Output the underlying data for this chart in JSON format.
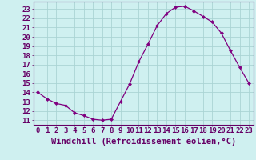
{
  "x": [
    0,
    1,
    2,
    3,
    4,
    5,
    6,
    7,
    8,
    9,
    10,
    11,
    12,
    13,
    14,
    15,
    16,
    17,
    18,
    19,
    20,
    21,
    22,
    23
  ],
  "y": [
    14,
    13.3,
    12.8,
    12.6,
    11.8,
    11.5,
    11.1,
    11.0,
    11.1,
    13.0,
    14.9,
    17.3,
    19.2,
    21.2,
    22.5,
    23.2,
    23.3,
    22.8,
    22.2,
    21.6,
    20.4,
    18.5,
    16.7,
    15.0
  ],
  "xlim": [
    -0.5,
    23.5
  ],
  "ylim": [
    10.5,
    23.8
  ],
  "yticks": [
    11,
    12,
    13,
    14,
    15,
    16,
    17,
    18,
    19,
    20,
    21,
    22,
    23
  ],
  "xticks": [
    0,
    1,
    2,
    3,
    4,
    5,
    6,
    7,
    8,
    9,
    10,
    11,
    12,
    13,
    14,
    15,
    16,
    17,
    18,
    19,
    20,
    21,
    22,
    23
  ],
  "xlabel": "Windchill (Refroidissement éolien,°C)",
  "line_color": "#800080",
  "marker": "D",
  "marker_size": 2.0,
  "bg_color": "#cff0f0",
  "grid_color": "#aad4d4",
  "tick_label_fontsize": 6.5,
  "xlabel_fontsize": 7.5,
  "label_color": "#660066"
}
